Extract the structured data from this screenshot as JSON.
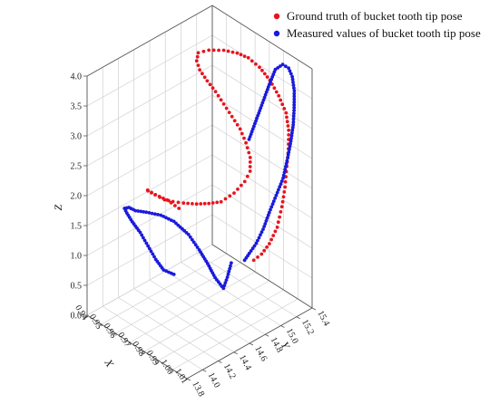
{
  "chart_data": {
    "type": "scatter",
    "dimensions": 3,
    "legend": {
      "placement": "top-right",
      "entries": [
        {
          "label": "Ground truth of bucket tooth tip pose",
          "color": "#e8141e"
        },
        {
          "label": "Measured values of bucket tooth tip pose",
          "color": "#1a1adc"
        }
      ]
    },
    "overlap_color": "#b0783a",
    "axes": {
      "x": {
        "label": "X",
        "range": [
          0.94,
          1.01
        ],
        "ticks": [
          "0.94",
          "0.95",
          "0.96",
          "0.97",
          "0.98",
          "0.99",
          "1.00",
          "1.01"
        ]
      },
      "y": {
        "label": "Y",
        "range": [
          13.8,
          15.4
        ],
        "ticks": [
          "13.8",
          "14.0",
          "14.2",
          "14.4",
          "14.6",
          "14.8",
          "15.0",
          "15.2",
          "15.4"
        ]
      },
      "z": {
        "label": "Z",
        "range": [
          0.0,
          4.0
        ],
        "ticks": [
          "0.0",
          "0.5",
          "1.0",
          "1.5",
          "2.0",
          "2.5",
          "3.0",
          "3.5",
          "4.0"
        ]
      }
    },
    "grid": true,
    "series": [
      {
        "color": "#e8141e",
        "points": [
          [
            0.955,
            14.7,
            1.35
          ],
          [
            0.955,
            14.55,
            1.6
          ],
          [
            0.955,
            14.4,
            1.8
          ],
          [
            0.955,
            14.3,
            1.95
          ],
          [
            0.958,
            14.25,
            2.02
          ],
          [
            0.963,
            14.25,
            2.03
          ],
          [
            0.968,
            14.28,
            2.0
          ],
          [
            0.97,
            14.35,
            1.95
          ],
          [
            0.972,
            14.45,
            1.88
          ],
          [
            0.974,
            14.58,
            1.8
          ],
          [
            0.976,
            14.7,
            1.75
          ],
          [
            0.978,
            14.82,
            1.72
          ],
          [
            0.98,
            14.95,
            1.8
          ],
          [
            0.982,
            15.05,
            1.95
          ],
          [
            0.983,
            15.1,
            2.1
          ],
          [
            0.982,
            15.12,
            2.3
          ],
          [
            0.979,
            15.12,
            2.5
          ],
          [
            0.976,
            15.1,
            2.7
          ],
          [
            0.973,
            15.05,
            2.9
          ],
          [
            0.97,
            15.0,
            3.1
          ],
          [
            0.967,
            14.95,
            3.3
          ],
          [
            0.965,
            14.88,
            3.5
          ],
          [
            0.963,
            14.82,
            3.7
          ],
          [
            0.962,
            14.8,
            3.85
          ],
          [
            0.962,
            14.82,
            3.97
          ],
          [
            0.965,
            14.9,
            4.0
          ],
          [
            0.97,
            15.0,
            4.0
          ],
          [
            0.975,
            15.08,
            3.97
          ],
          [
            0.979,
            15.15,
            3.9
          ],
          [
            0.983,
            15.22,
            3.75
          ],
          [
            0.987,
            15.28,
            3.55
          ],
          [
            0.991,
            15.32,
            3.32
          ],
          [
            0.995,
            15.34,
            3.08
          ],
          [
            0.998,
            15.32,
            2.85
          ],
          [
            1.0,
            15.28,
            2.6
          ],
          [
            1.001,
            15.24,
            2.35
          ],
          [
            1.002,
            15.2,
            2.05
          ],
          [
            1.002,
            15.16,
            1.75
          ],
          [
            1.002,
            15.1,
            1.45
          ],
          [
            1.002,
            15.0,
            1.25
          ],
          [
            1.002,
            14.9,
            1.15
          ],
          [
            1.002,
            14.8,
            1.12
          ]
        ]
      },
      {
        "color": "#1a1adc",
        "points": [
          [
            0.957,
            14.6,
            0.35
          ],
          [
            0.958,
            14.45,
            0.55
          ],
          [
            0.958,
            14.35,
            0.8
          ],
          [
            0.958,
            14.25,
            1.1
          ],
          [
            0.958,
            14.15,
            1.4
          ],
          [
            0.958,
            14.05,
            1.65
          ],
          [
            0.958,
            13.98,
            1.85
          ],
          [
            0.958,
            13.95,
            1.95
          ],
          [
            0.96,
            13.97,
            1.98
          ],
          [
            0.963,
            14.0,
            1.95
          ],
          [
            0.965,
            14.1,
            1.88
          ],
          [
            0.967,
            14.25,
            1.75
          ],
          [
            0.968,
            14.4,
            1.55
          ],
          [
            0.97,
            14.55,
            1.25
          ],
          [
            0.972,
            14.65,
            0.95
          ],
          [
            0.974,
            14.72,
            0.7
          ],
          [
            0.976,
            14.78,
            0.45
          ],
          [
            0.978,
            14.85,
            0.25
          ],
          [
            0.978,
            14.9,
            0.4
          ],
          [
            0.978,
            14.95,
            0.6
          ],
          [
            0.985,
            15.05,
            2.7
          ],
          [
            0.987,
            15.1,
            3.0
          ],
          [
            0.989,
            15.15,
            3.3
          ],
          [
            0.991,
            15.2,
            3.6
          ],
          [
            0.993,
            15.24,
            3.85
          ],
          [
            0.996,
            15.28,
            3.95
          ],
          [
            0.999,
            15.3,
            3.92
          ],
          [
            1.001,
            15.31,
            3.8
          ],
          [
            1.003,
            15.3,
            3.6
          ],
          [
            1.004,
            15.28,
            3.35
          ],
          [
            1.005,
            15.25,
            3.1
          ],
          [
            1.005,
            15.22,
            2.85
          ],
          [
            1.005,
            15.18,
            2.6
          ],
          [
            1.005,
            15.12,
            2.3
          ],
          [
            1.004,
            15.05,
            2.05
          ],
          [
            1.003,
            14.98,
            1.8
          ],
          [
            1.002,
            14.92,
            1.55
          ],
          [
            1.001,
            14.85,
            1.35
          ],
          [
            1.0,
            14.78,
            1.22
          ],
          [
            1.0,
            14.72,
            1.15
          ]
        ]
      }
    ]
  }
}
